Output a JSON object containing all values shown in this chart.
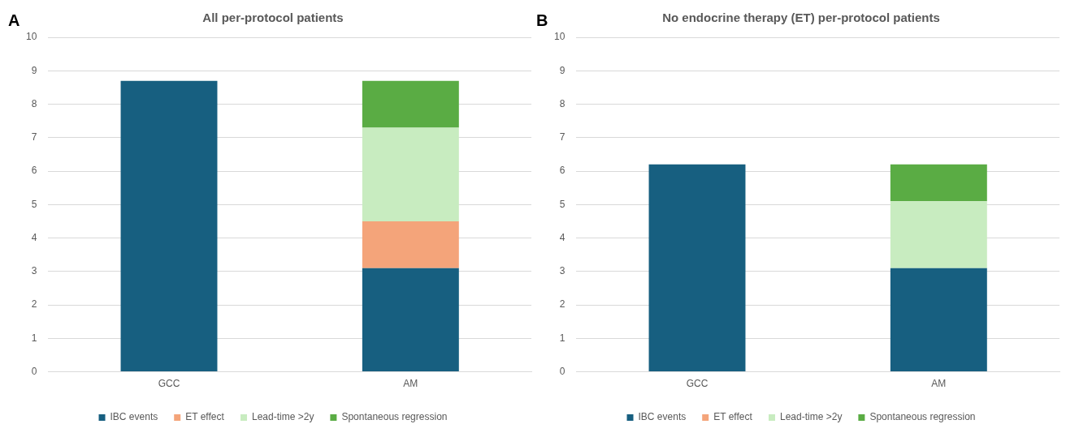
{
  "chart_data": [
    {
      "type": "bar",
      "title": "All per-protocol patients",
      "annotations": [
        "A"
      ],
      "categories": [
        "GCC",
        "AM"
      ],
      "stacked": true,
      "ylim": [
        0,
        10
      ],
      "yticks": [
        0,
        1,
        2,
        3,
        4,
        5,
        6,
        7,
        8,
        9,
        10
      ],
      "grid": "y",
      "legend": "bottom",
      "series": [
        {
          "name": "IBC events",
          "color": "#175f80",
          "values": [
            8.7,
            3.1
          ]
        },
        {
          "name": "ET effect",
          "color": "#f4a47a",
          "values": [
            null,
            1.4
          ]
        },
        {
          "name": "Lead-time >2y",
          "color": "#c8ecc0",
          "values": [
            null,
            2.8
          ]
        },
        {
          "name": "Spontaneous regression",
          "color": "#5aac44",
          "values": [
            null,
            1.4
          ]
        }
      ]
    },
    {
      "type": "bar",
      "title": "No endocrine therapy (ET) per-protocol patients",
      "annotations": [
        "B"
      ],
      "categories": [
        "GCC",
        "AM"
      ],
      "stacked": true,
      "ylim": [
        0,
        10
      ],
      "yticks": [
        0,
        1,
        2,
        3,
        4,
        5,
        6,
        7,
        8,
        9,
        10
      ],
      "grid": "y",
      "legend": "bottom",
      "series": [
        {
          "name": "IBC events",
          "color": "#175f80",
          "values": [
            6.2,
            3.1
          ]
        },
        {
          "name": "ET effect",
          "color": "#f4a47a",
          "values": [
            null,
            0
          ]
        },
        {
          "name": "Lead-time >2y",
          "color": "#c8ecc0",
          "values": [
            null,
            2.0
          ]
        },
        {
          "name": "Spontaneous regression",
          "color": "#5aac44",
          "values": [
            null,
            1.1
          ]
        }
      ]
    }
  ]
}
